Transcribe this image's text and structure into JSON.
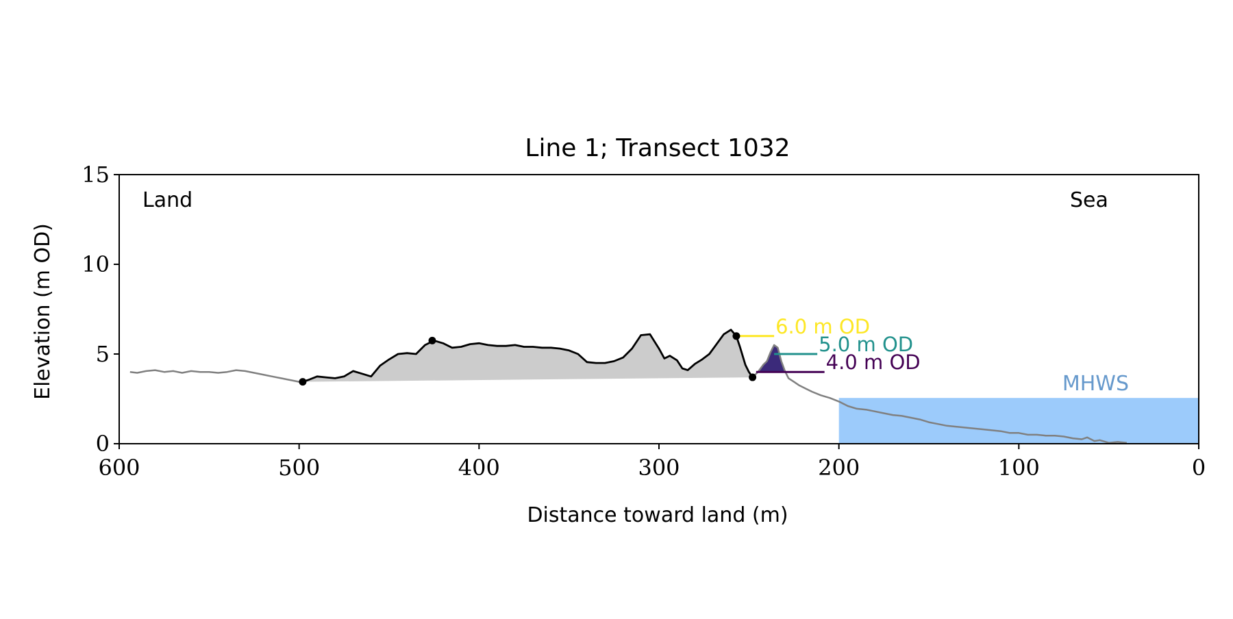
{
  "chart_data": {
    "type": "line",
    "title": "Line 1; Transect 1032",
    "xlabel": "Distance toward land (m)",
    "ylabel": "Elevation (m OD)",
    "xlim": [
      600,
      0
    ],
    "ylim": [
      0,
      15
    ],
    "x_ticks": [
      "600",
      "500",
      "400",
      "300",
      "200",
      "100",
      "0"
    ],
    "y_ticks": [
      "0",
      "5",
      "10",
      "15"
    ],
    "grid": false,
    "annotations": {
      "land": "Land",
      "sea": "Sea",
      "mhws": "MHWS"
    },
    "mhws_level": 2.55,
    "colors": {
      "profile": "#808080",
      "dune_crest": "#000000",
      "dune_fill": "#cccccc",
      "water": "#9ccbfb",
      "mhws_text": "#6699cc",
      "level_6": "#fde725",
      "level_5": "#21918c",
      "level_4": "#440154",
      "foredune_fill": "#3b2a7a"
    },
    "levels": [
      {
        "label": "6.0 m OD",
        "elevation": 6.0,
        "x_start": 256,
        "x_end": 236
      },
      {
        "label": "5.0 m OD",
        "elevation": 5.0,
        "x_start": 236,
        "x_end": 212
      },
      {
        "label": "4.0 m OD",
        "elevation": 4.0,
        "x_start": 246,
        "x_end": 208
      }
    ],
    "series": [
      {
        "x": [
          594,
          590,
          585,
          580,
          575,
          570,
          565,
          560,
          555,
          550,
          545,
          540,
          535,
          530,
          525,
          520,
          515,
          510,
          505,
          500,
          498
        ],
        "y": [
          4.0,
          3.95,
          4.05,
          4.1,
          4.0,
          4.05,
          3.95,
          4.05,
          4.0,
          4.0,
          3.95,
          4.0,
          4.1,
          4.05,
          3.95,
          3.85,
          3.75,
          3.65,
          3.55,
          3.45,
          3.45
        ]
      },
      {
        "x": [
          498,
          495,
          490,
          485,
          480,
          475,
          470,
          465,
          460,
          455,
          450,
          445,
          440,
          435,
          430,
          425,
          420,
          415,
          410,
          405,
          400,
          395,
          390,
          385,
          380,
          375,
          370,
          365,
          360,
          355,
          350,
          345,
          340,
          335,
          330,
          325,
          320,
          315,
          310,
          305,
          300,
          297,
          294,
          290,
          287,
          284,
          280,
          276,
          272,
          268,
          264,
          260,
          257,
          255,
          252,
          250,
          248
        ],
        "y": [
          3.45,
          3.55,
          3.75,
          3.7,
          3.65,
          3.75,
          4.05,
          3.9,
          3.75,
          4.35,
          4.7,
          5.0,
          5.05,
          5.0,
          5.5,
          5.75,
          5.6,
          5.35,
          5.4,
          5.55,
          5.6,
          5.5,
          5.45,
          5.45,
          5.5,
          5.4,
          5.4,
          5.35,
          5.35,
          5.3,
          5.2,
          5.0,
          4.55,
          4.5,
          4.5,
          4.6,
          4.8,
          5.3,
          6.05,
          6.1,
          5.3,
          4.75,
          4.9,
          4.65,
          4.2,
          4.1,
          4.45,
          4.7,
          5.0,
          5.55,
          6.1,
          6.35,
          6.0,
          5.4,
          4.4,
          4.0,
          3.7
        ]
      },
      {
        "x": [
          248,
          245,
          242,
          240,
          238,
          236,
          234,
          232,
          230,
          228,
          225,
          222,
          218,
          215,
          210,
          205,
          200,
          195,
          190,
          185,
          180,
          175,
          170,
          165,
          160,
          155,
          150,
          145,
          140,
          135,
          130,
          125,
          120,
          115,
          110,
          105,
          100,
          95,
          90,
          85,
          80,
          75,
          70,
          65,
          62,
          58,
          55,
          50,
          45,
          40
        ],
        "y": [
          3.7,
          4.0,
          4.4,
          4.6,
          5.1,
          5.5,
          5.35,
          4.6,
          4.05,
          3.65,
          3.45,
          3.25,
          3.05,
          2.9,
          2.7,
          2.55,
          2.35,
          2.1,
          1.95,
          1.9,
          1.8,
          1.7,
          1.6,
          1.55,
          1.45,
          1.35,
          1.2,
          1.1,
          1.0,
          0.95,
          0.9,
          0.85,
          0.8,
          0.75,
          0.7,
          0.6,
          0.6,
          0.5,
          0.5,
          0.45,
          0.45,
          0.4,
          0.3,
          0.25,
          0.35,
          0.15,
          0.2,
          0.05,
          0.1,
          0.05
        ]
      }
    ],
    "markers": [
      {
        "x": 498,
        "y": 3.45
      },
      {
        "x": 426,
        "y": 5.75
      },
      {
        "x": 257,
        "y": 6.0
      },
      {
        "x": 248,
        "y": 3.7
      }
    ]
  }
}
